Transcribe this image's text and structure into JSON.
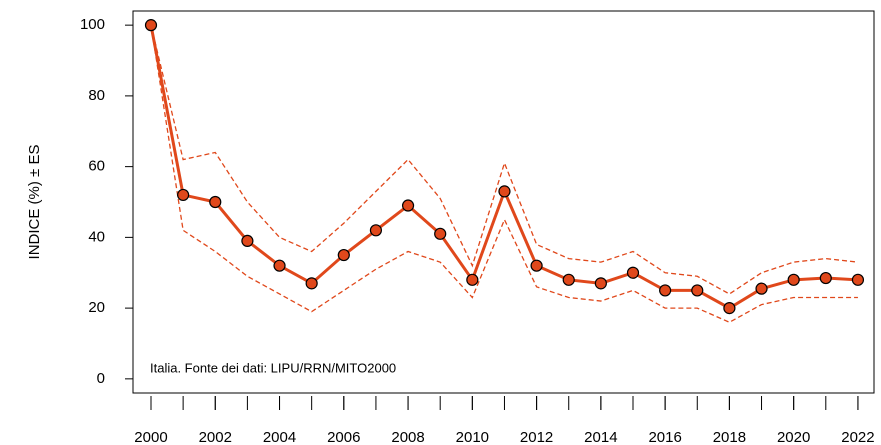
{
  "chart_data": {
    "type": "line",
    "ylabel": "INDICE (%) ± ES",
    "annotation": "Italia. Fonte dei dati: LIPU/RRN/MITO2000",
    "x": [
      2000,
      2001,
      2002,
      2003,
      2004,
      2005,
      2006,
      2007,
      2008,
      2009,
      2010,
      2011,
      2012,
      2013,
      2014,
      2015,
      2016,
      2017,
      2018,
      2019,
      2020,
      2021,
      2022
    ],
    "series": [
      {
        "name": "Indice",
        "color": "#e0481b",
        "values": [
          100,
          52,
          50,
          39,
          32,
          27,
          35,
          42,
          49,
          41,
          28,
          53,
          32,
          28,
          27,
          30,
          25,
          25,
          20,
          25.5,
          28,
          28.5,
          28
        ]
      },
      {
        "name": "+ES",
        "color": "#e0481b",
        "dashed": true,
        "values": [
          100,
          62,
          64,
          50,
          40,
          36,
          44,
          53,
          62,
          51,
          32,
          61,
          38,
          34,
          33,
          36,
          30,
          29,
          24,
          30,
          33,
          34,
          33
        ]
      },
      {
        "name": "-ES",
        "color": "#e0481b",
        "dashed": true,
        "values": [
          100,
          42,
          36,
          29,
          24,
          19,
          25,
          31,
          36,
          33,
          23,
          45,
          26,
          23,
          22,
          25,
          20,
          20,
          16,
          21,
          23,
          23,
          23
        ]
      }
    ],
    "xlim": [
      1999.44,
      2022.5
    ],
    "xticks": [
      2000,
      2002,
      2004,
      2006,
      2008,
      2010,
      2012,
      2014,
      2016,
      2018,
      2020,
      2022
    ],
    "ylim": [
      -4,
      104
    ],
    "yticks": [
      0,
      20,
      40,
      60,
      80,
      100
    ]
  }
}
